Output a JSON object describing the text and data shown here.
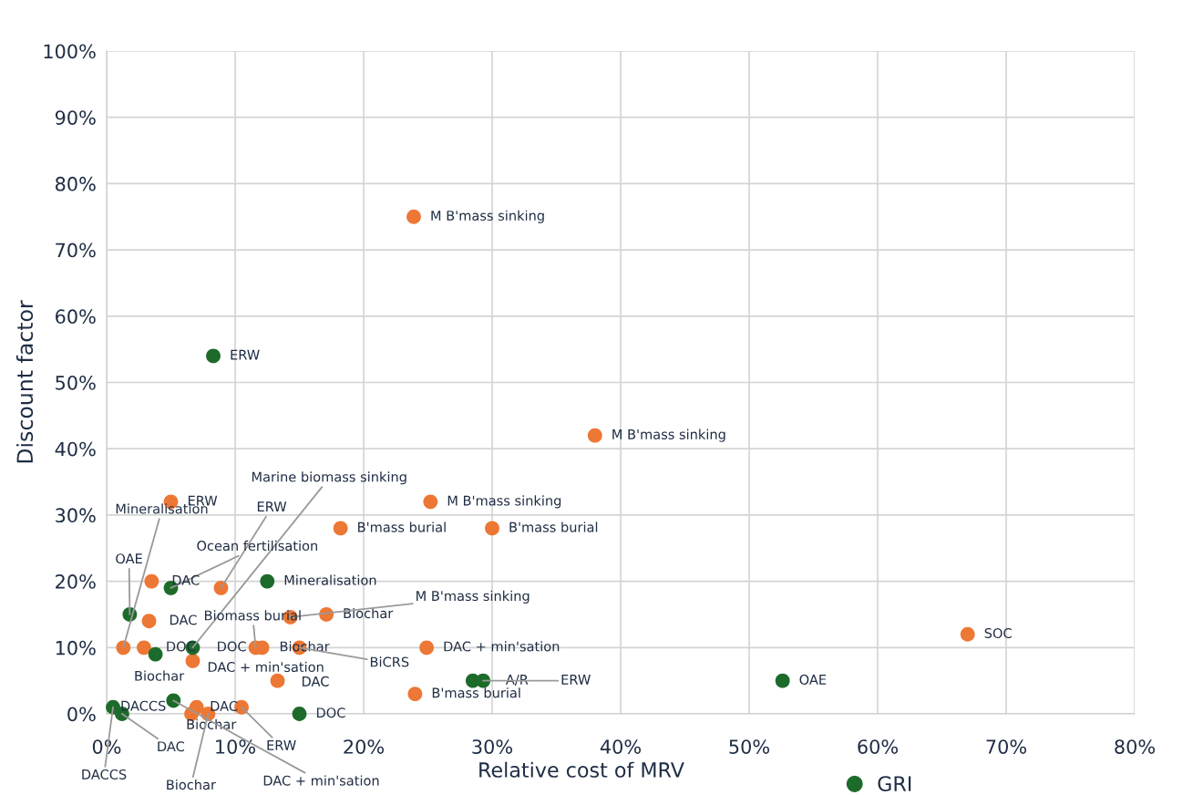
{
  "chart_data": {
    "type": "scatter",
    "xlabel": "Relative cost of MRV",
    "ylabel": "Discount factor",
    "xlim": [
      0,
      80
    ],
    "ylim": [
      0,
      100
    ],
    "xticks": [
      {
        "value": 0,
        "label": "0%"
      },
      {
        "value": 10,
        "label": "10%"
      },
      {
        "value": 20,
        "label": "20%"
      },
      {
        "value": 30,
        "label": "30%"
      },
      {
        "value": 40,
        "label": "40%"
      },
      {
        "value": 50,
        "label": "50%"
      },
      {
        "value": 60,
        "label": "60%"
      },
      {
        "value": 70,
        "label": "70%"
      },
      {
        "value": 80,
        "label": "80%"
      }
    ],
    "yticks": [
      {
        "value": 0,
        "label": "0%"
      },
      {
        "value": 10,
        "label": "10%"
      },
      {
        "value": 20,
        "label": "20%"
      },
      {
        "value": 30,
        "label": "30%"
      },
      {
        "value": 40,
        "label": "40%"
      },
      {
        "value": 50,
        "label": "50%"
      },
      {
        "value": 60,
        "label": "60%"
      },
      {
        "value": 70,
        "label": "70%"
      },
      {
        "value": 80,
        "label": "80%"
      },
      {
        "value": 90,
        "label": "90%"
      },
      {
        "value": 100,
        "label": "100%"
      }
    ],
    "grid": true,
    "legend": "bottom",
    "marker": "circle",
    "series": [
      {
        "color": "#ed7734",
        "x": [
          23.9,
          38.0,
          25.2,
          5.0,
          18.2,
          30.0,
          3.5,
          8.9,
          14.3,
          17.1,
          3.3,
          1.3,
          2.9,
          11.6,
          12.1,
          15.0,
          6.7,
          24.9,
          13.3,
          24.0,
          67.0,
          7.0,
          6.6,
          7.9,
          10.5
        ],
        "values": [
          75,
          42,
          32,
          32,
          28,
          28,
          20,
          19,
          14.6,
          15,
          14,
          10,
          10,
          10,
          10,
          10,
          8,
          10,
          5,
          3,
          12,
          1,
          0,
          0,
          1
        ]
      },
      {
        "name": "GRI",
        "color": "#1d6b2b",
        "x": [
          8.3,
          12.5,
          5.0,
          1.8,
          6.7,
          3.8,
          5.2,
          0.5,
          1.2,
          15.0,
          28.5,
          29.3,
          52.6
        ],
        "values": [
          54,
          20,
          19,
          15,
          10,
          9,
          2,
          1,
          0,
          0,
          5,
          5,
          5
        ]
      }
    ],
    "annotations": [
      {
        "text": "M B'mass sinking",
        "x": 23.9,
        "y": 75
      },
      {
        "text": "M B'mass sinking",
        "x": 38.0,
        "y": 42
      },
      {
        "text": "M B'mass sinking",
        "x": 25.2,
        "y": 32
      },
      {
        "text": "ERW",
        "x": 5.0,
        "y": 32
      },
      {
        "text": "B'mass burial",
        "x": 18.2,
        "y": 28
      },
      {
        "text": "B'mass burial",
        "x": 30.0,
        "y": 28
      },
      {
        "text": "ERW",
        "x": 8.3,
        "y": 54
      },
      {
        "text": "Mineralisation",
        "x": 12.5,
        "y": 20
      },
      {
        "text": "SOC",
        "x": 67.0,
        "y": 12
      },
      {
        "text": "DAC + min'sation",
        "x": 24.9,
        "y": 10
      },
      {
        "text": "OAE",
        "x": 52.6,
        "y": 5
      },
      {
        "text": "B'mass burial",
        "x": 24.0,
        "y": 3
      },
      {
        "text": "DOC",
        "x": 15.0,
        "y": 0
      },
      {
        "text": "Biochar",
        "x": 17.1,
        "y": 15
      },
      {
        "text": "Marine biomass sinking",
        "x": 6.7,
        "y": 10
      },
      {
        "text": "ERW",
        "x": 8.9,
        "y": 19
      },
      {
        "text": "Mineralisation",
        "x": 1.3,
        "y": 10
      },
      {
        "text": "Ocean fertilisation",
        "x": 5.0,
        "y": 19
      },
      {
        "text": "OAE",
        "x": 1.8,
        "y": 15
      },
      {
        "text": "DAC",
        "x": 3.5,
        "y": 20
      },
      {
        "text": "DAC",
        "x": 3.3,
        "y": 14
      },
      {
        "text": "M B'mass sinking",
        "x": 14.3,
        "y": 14.6
      },
      {
        "text": "Biomass burial",
        "x": 11.6,
        "y": 10
      },
      {
        "text": "DOC",
        "x": 2.9,
        "y": 10
      },
      {
        "text": "DOC",
        "x": 11.6,
        "y": 10
      },
      {
        "text": "Biochar",
        "x": 15.0,
        "y": 10
      },
      {
        "text": "BiCRS",
        "x": 15.0,
        "y": 10
      },
      {
        "text": "Biochar",
        "x": 3.8,
        "y": 9
      },
      {
        "text": "DAC + min'sation",
        "x": 6.7,
        "y": 8
      },
      {
        "text": "DAC",
        "x": 13.3,
        "y": 5
      },
      {
        "text": "A/R",
        "x": 28.5,
        "y": 5
      },
      {
        "text": "ERW",
        "x": 29.3,
        "y": 5
      },
      {
        "text": "DACCS",
        "x": 5.2,
        "y": 2
      },
      {
        "text": "DAC",
        "x": 10.5,
        "y": 1
      },
      {
        "text": "ERW",
        "x": 10.5,
        "y": 1
      },
      {
        "text": "Biochar",
        "x": 7.0,
        "y": 1
      },
      {
        "text": "Biochar",
        "x": 7.9,
        "y": 0
      },
      {
        "text": "DAC + min'sation",
        "x": 5.2,
        "y": 2
      },
      {
        "text": "DAC",
        "x": 1.2,
        "y": 0
      },
      {
        "text": "DACCS",
        "x": 0.5,
        "y": 1
      }
    ]
  }
}
